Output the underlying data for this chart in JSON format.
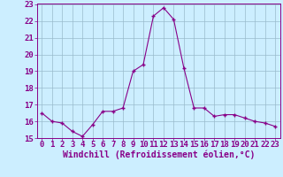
{
  "x": [
    0,
    1,
    2,
    3,
    4,
    5,
    6,
    7,
    8,
    9,
    10,
    11,
    12,
    13,
    14,
    15,
    16,
    17,
    18,
    19,
    20,
    21,
    22,
    23
  ],
  "y": [
    16.5,
    16.0,
    15.9,
    15.4,
    15.1,
    15.8,
    16.6,
    16.6,
    16.8,
    19.0,
    19.4,
    22.3,
    22.8,
    22.1,
    19.2,
    16.8,
    16.8,
    16.3,
    16.4,
    16.4,
    16.2,
    16.0,
    15.9,
    15.7
  ],
  "xlim": [
    0,
    23
  ],
  "ylim": [
    15.0,
    23.0
  ],
  "yticks": [
    15,
    16,
    17,
    18,
    19,
    20,
    21,
    22,
    23
  ],
  "xticks": [
    0,
    1,
    2,
    3,
    4,
    5,
    6,
    7,
    8,
    9,
    10,
    11,
    12,
    13,
    14,
    15,
    16,
    17,
    18,
    19,
    20,
    21,
    22,
    23
  ],
  "xlabel": "Windchill (Refroidissement éolien,°C)",
  "line_color": "#880088",
  "marker_color": "#880088",
  "bg_color": "#cceeff",
  "grid_color": "#99bbcc",
  "tick_fontsize": 6.5,
  "label_fontsize": 7.0
}
